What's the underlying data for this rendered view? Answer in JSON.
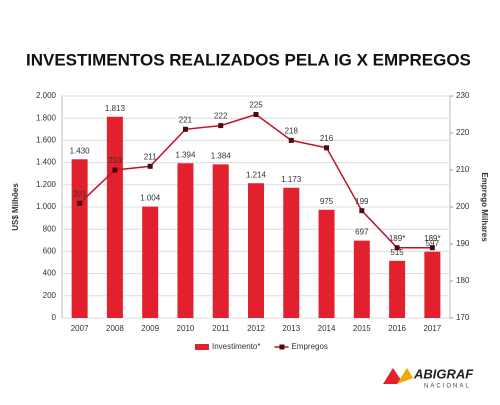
{
  "chart_data": {
    "type": "bar",
    "title": "INVESTIMENTOS REALIZADOS PELA IG X EMPREGOS",
    "y_label": "US$ Milhões",
    "y2_label": "Emprego Milhares",
    "categories": [
      "2007",
      "2008",
      "2009",
      "2010",
      "2011",
      "2012",
      "2013",
      "2014",
      "2015",
      "2016",
      "2017"
    ],
    "series": [
      {
        "name": "Investimento*",
        "type": "bar",
        "color": "#e3202d",
        "values": [
          1430,
          1813,
          1004,
          1394,
          1384,
          1214,
          1173,
          975,
          697,
          515,
          597
        ],
        "value_labels": [
          "1.430",
          "1.813",
          "1.004",
          "1.394",
          "1.384",
          "1.214",
          "1.173",
          "975",
          "697",
          "515",
          "597"
        ]
      },
      {
        "name": "Empregos",
        "type": "line",
        "axis": "y2",
        "color": "#c0122a",
        "values": [
          201,
          210,
          211,
          221,
          222,
          225,
          218,
          216,
          199,
          189,
          189
        ],
        "value_labels": [
          "201",
          "210",
          "211",
          "221",
          "222",
          "225",
          "218",
          "216",
          "199",
          "189*",
          "189*"
        ]
      }
    ],
    "ylim": [
      0,
      2000
    ],
    "yticks": [
      0,
      200,
      400,
      600,
      800,
      {
        "value": 1000,
        "label": "1.000"
      },
      {
        "value": 1200,
        "label": "1.200"
      },
      {
        "value": 1400,
        "label": "1.400"
      },
      {
        "value": 1600,
        "label": "1.600"
      },
      {
        "value": 1800,
        "label": "1.800"
      },
      {
        "value": 2000,
        "label": "2.000"
      }
    ],
    "y2lim": [
      170,
      230
    ],
    "y2ticks": [
      170,
      180,
      190,
      200,
      210,
      220,
      230
    ],
    "grid": true,
    "legend": "bottom"
  },
  "logo": {
    "name": "ABIGRAF",
    "subtitle": "NACIONAL"
  }
}
